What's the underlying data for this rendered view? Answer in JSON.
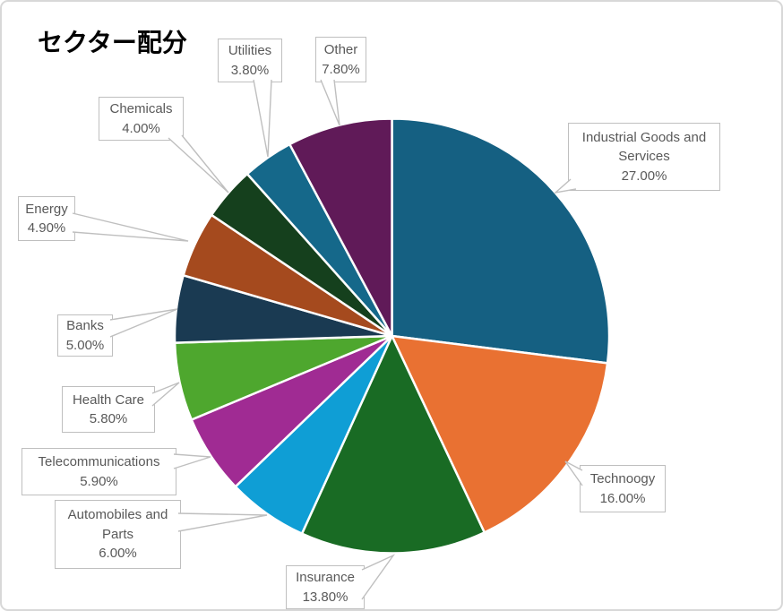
{
  "window": {
    "background": "#FFFFFF",
    "frame_border_color": "#D8D8D8"
  },
  "chart_data": {
    "type": "pie",
    "title": "セクター配分",
    "legend": "none",
    "start_angle_deg": 0,
    "direction": "clockwise",
    "slice_border_color": "#FFFFFF",
    "callout_border_color": "#BFBFBF",
    "callout_text_color": "#595959",
    "title_color": "#000000",
    "categories": [
      "Industrial Goods and Services",
      "Technoogy",
      "Insurance",
      "Automobiles and Parts",
      "Telecommunications",
      "Health Care",
      "Banks",
      "Energy",
      "Chemicals",
      "Utilities",
      "Other"
    ],
    "values": [
      27.0,
      16.0,
      13.8,
      6.0,
      5.9,
      5.8,
      5.0,
      4.9,
      4.0,
      3.8,
      7.8
    ],
    "colors": [
      "#156082",
      "#E97132",
      "#196B24",
      "#0F9ED5",
      "#A02B93",
      "#4EA72E",
      "#1A3A52",
      "#A54A1E",
      "#15401D",
      "#15688A",
      "#601A58"
    ],
    "slices": [
      {
        "name": "Industrial Goods and Services",
        "value": 27.0,
        "color": "#156082",
        "label_lines": [
          "Industrial Goods and",
          "Services"
        ],
        "percent_label": "27.00%"
      },
      {
        "name": "Technoogy",
        "value": 16.0,
        "color": "#E97132",
        "label_lines": [
          "Technoogy"
        ],
        "percent_label": "16.00%"
      },
      {
        "name": "Insurance",
        "value": 13.8,
        "color": "#196B24",
        "label_lines": [
          "Insurance"
        ],
        "percent_label": "13.80%"
      },
      {
        "name": "Automobiles and Parts",
        "value": 6.0,
        "color": "#0F9ED5",
        "label_lines": [
          "Automobiles and",
          "Parts"
        ],
        "percent_label": "6.00%"
      },
      {
        "name": "Telecommunications",
        "value": 5.9,
        "color": "#A02B93",
        "label_lines": [
          "Telecommunications"
        ],
        "percent_label": "5.90%"
      },
      {
        "name": "Health Care",
        "value": 5.8,
        "color": "#4EA72E",
        "label_lines": [
          "Health Care"
        ],
        "percent_label": "5.80%"
      },
      {
        "name": "Banks",
        "value": 5.0,
        "color": "#1A3A52",
        "label_lines": [
          "Banks"
        ],
        "percent_label": "5.00%"
      },
      {
        "name": "Energy",
        "value": 4.9,
        "color": "#A54A1E",
        "label_lines": [
          "Energy"
        ],
        "percent_label": "4.90%"
      },
      {
        "name": "Chemicals",
        "value": 4.0,
        "color": "#15401D",
        "label_lines": [
          "Chemicals"
        ],
        "percent_label": "4.00%"
      },
      {
        "name": "Utilities",
        "value": 3.8,
        "color": "#15688A",
        "label_lines": [
          "Utilities"
        ],
        "percent_label": "3.80%"
      },
      {
        "name": "Other",
        "value": 7.8,
        "color": "#601A58",
        "label_lines": [
          "Other"
        ],
        "percent_label": "7.80%"
      }
    ]
  }
}
